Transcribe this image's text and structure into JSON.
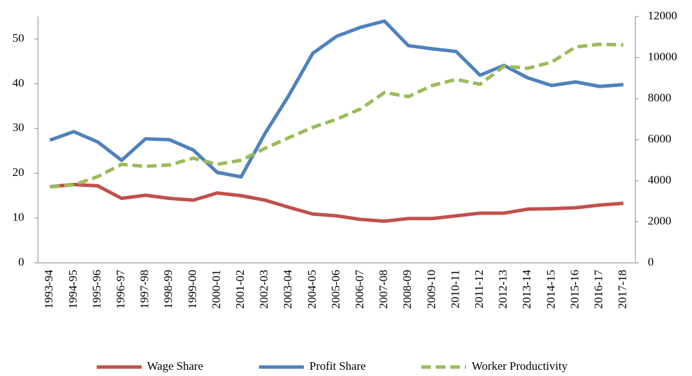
{
  "chart_data": {
    "type": "line",
    "categories": [
      "1993-94",
      "1994-95",
      "1995-96",
      "1996-97",
      "1997-98",
      "1998-99",
      "1999-00",
      "2000-01",
      "2001-02",
      "2002-03",
      "2003-04",
      "2004-05",
      "2005-06",
      "2006-07",
      "2007-08",
      "2008-09",
      "2009-10",
      "2010-11",
      "2011-12",
      "2012-13",
      "2013-14",
      "2014-15",
      "2015-16",
      "2016-17",
      "2017-18"
    ],
    "series": [
      {
        "name": "Wage Share",
        "color": "#c0504d",
        "dashed": false,
        "values": [
          17,
          17.5,
          17.2,
          14.4,
          15.1,
          14.4,
          14,
          15.6,
          15,
          14,
          12.4,
          10.9,
          10.5,
          9.7,
          9.3,
          9.9,
          9.9,
          10.5,
          11.1,
          11.1,
          12,
          12.1,
          12.3,
          12.9,
          13.3
        ]
      },
      {
        "name": "Profit Share",
        "color": "#4f81bd",
        "dashed": false,
        "values": [
          27.4,
          29.3,
          27,
          22.9,
          27.7,
          27.5,
          25.2,
          20.2,
          19.2,
          28.9,
          37.4,
          46.8,
          50.6,
          52.6,
          54,
          48.5,
          47.8,
          47.2,
          41.9,
          44.1,
          41.3,
          39.6,
          40.4,
          39.4,
          39.8
        ]
      },
      {
        "name": "Worker Productivity",
        "color": "#9bbb59",
        "dashed": true,
        "axis": "y2",
        "values": [
          3700,
          3800,
          4200,
          4800,
          4700,
          4770,
          5100,
          4800,
          5000,
          5580,
          6100,
          6600,
          7000,
          7500,
          8300,
          8100,
          8640,
          8940,
          8700,
          9580,
          9480,
          9780,
          10520,
          10650,
          10620
        ]
      }
    ],
    "ylim": [
      0,
      55
    ],
    "yticks": [
      0,
      10,
      20,
      30,
      40,
      50
    ],
    "y2lim": [
      0,
      12000
    ],
    "y2ticks": [
      0,
      2000,
      4000,
      6000,
      8000,
      10000,
      12000
    ],
    "grid": false,
    "legend": "bottom"
  }
}
